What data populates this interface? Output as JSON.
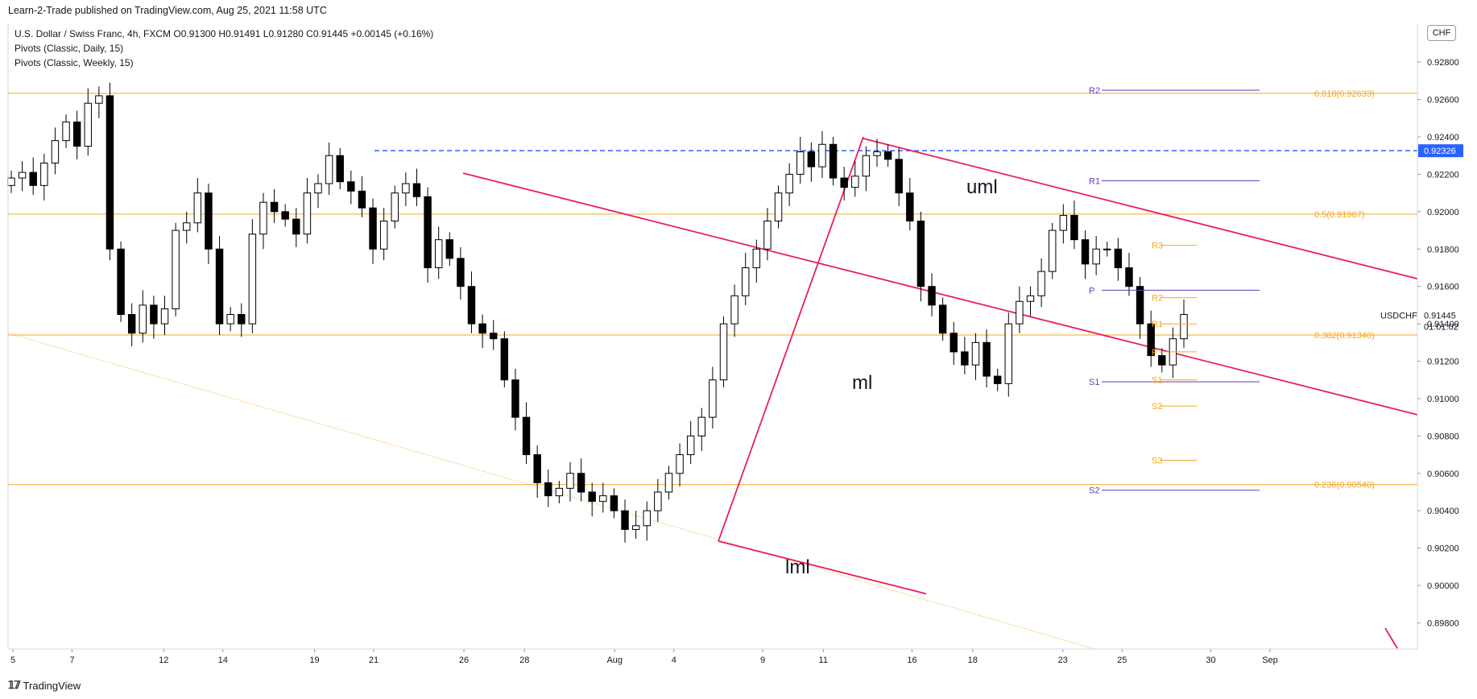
{
  "header": {
    "published_by": "Learn-2-Trade published on TradingView.com, Aug 25, 2021 11:58 UTC"
  },
  "legend": {
    "symbol_line": "U.S. Dollar / Swiss Franc, 4h, FXCM  O0.91300 H0.91491 L0.91280 C0.91445 +0.00145 (+0.16%)",
    "indicator_daily": "Pivots (Classic, Daily, 15)",
    "indicator_weekly": "Pivots (Classic, Weekly, 15)"
  },
  "currency_badge": "CHF",
  "footer": {
    "brand": "TradingView"
  },
  "colors": {
    "candle_up": "#ffffff",
    "candle_down": "#000000",
    "fib": "#f5a623",
    "pitchfork": "#e91e63",
    "weekly_pivot": "#673ab7",
    "daily_pivot": "#f5a623",
    "resistance_dash": "#2962ff"
  },
  "chart_data": {
    "type": "candlestick",
    "symbol": "USDCHF",
    "timeframe": "4h",
    "x_ticks": [
      "5",
      "7",
      "12",
      "14",
      "19",
      "21",
      "26",
      "28",
      "Aug",
      "4",
      "9",
      "11",
      "16",
      "18",
      "23",
      "25",
      "30",
      "Sep"
    ],
    "y_ticks": [
      "0.92800",
      "0.92600",
      "0.92400",
      "0.92200",
      "0.92000",
      "0.91800",
      "0.91600",
      "0.91400",
      "0.91200",
      "0.91000",
      "0.90800",
      "0.90600",
      "0.90400",
      "0.90200",
      "0.90000",
      "0.89800"
    ],
    "ylim": [
      0.8966,
      0.9296
    ],
    "last_price": {
      "symbol": "USDCHF",
      "value": "0.91445",
      "countdown": "01:01:02"
    },
    "resistance_price_label": "0.92326",
    "fib_levels": [
      {
        "label": "0.618(0.92633)",
        "value": 0.92633
      },
      {
        "label": "0.5(0.91987)",
        "value": 0.91987
      },
      {
        "label": "0.382(0.91340)",
        "value": 0.9134
      },
      {
        "label": "0.236(0.90540)",
        "value": 0.9054
      }
    ],
    "weekly_pivots": [
      {
        "label": "R2",
        "value": 0.9265
      },
      {
        "label": "R1",
        "value": 0.92165
      },
      {
        "label": "P",
        "value": 0.9158
      },
      {
        "label": "S1",
        "value": 0.9109
      },
      {
        "label": "S2",
        "value": 0.9051
      }
    ],
    "daily_pivots": [
      {
        "label": "R3",
        "value": 0.9182
      },
      {
        "label": "R2",
        "value": 0.9154
      },
      {
        "label": "R1",
        "value": 0.914
      },
      {
        "label": "P",
        "value": 0.9125
      },
      {
        "label": "S1",
        "value": 0.911
      },
      {
        "label": "S2",
        "value": 0.9096
      },
      {
        "label": "S3",
        "value": 0.9067
      }
    ],
    "pitchfork_labels": [
      "uml",
      "ml",
      "lml"
    ],
    "closes": [
      0.9218,
      0.9221,
      0.9214,
      0.9226,
      0.9238,
      0.9248,
      0.9235,
      0.9258,
      0.9262,
      0.918,
      0.9145,
      0.9135,
      0.915,
      0.914,
      0.9148,
      0.919,
      0.9194,
      0.921,
      0.918,
      0.914,
      0.9145,
      0.914,
      0.9188,
      0.9205,
      0.92,
      0.9196,
      0.9188,
      0.921,
      0.9215,
      0.923,
      0.9216,
      0.9211,
      0.9202,
      0.918,
      0.9195,
      0.921,
      0.9215,
      0.9208,
      0.917,
      0.9185,
      0.9175,
      0.916,
      0.914,
      0.9135,
      0.9132,
      0.911,
      0.909,
      0.907,
      0.9055,
      0.9048,
      0.9052,
      0.906,
      0.905,
      0.9045,
      0.9048,
      0.904,
      0.903,
      0.9032,
      0.904,
      0.905,
      0.906,
      0.907,
      0.908,
      0.909,
      0.911,
      0.914,
      0.9155,
      0.917,
      0.918,
      0.9195,
      0.921,
      0.922,
      0.9232,
      0.9224,
      0.9236,
      0.9218,
      0.9213,
      0.9219,
      0.923,
      0.9232,
      0.9228,
      0.921,
      0.9195,
      0.916,
      0.915,
      0.9135,
      0.9125,
      0.9118,
      0.913,
      0.9112,
      0.9108,
      0.914,
      0.9152,
      0.9155,
      0.9168,
      0.919,
      0.9198,
      0.9185,
      0.9172,
      0.918,
      0.918,
      0.917,
      0.916,
      0.914,
      0.9123,
      0.9118,
      0.9132,
      0.9145
    ]
  }
}
